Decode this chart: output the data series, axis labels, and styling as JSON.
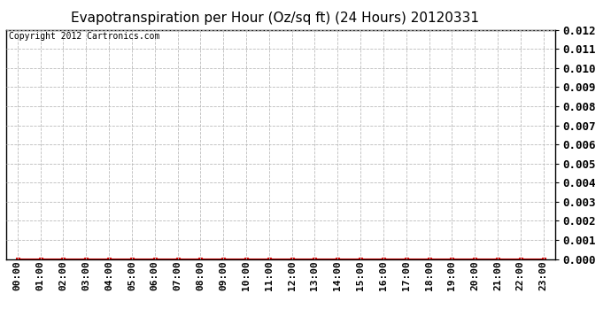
{
  "title": "Evapotranspiration per Hour (Oz/sq ft) (24 Hours) 20120331",
  "copyright_text": "Copyright 2012 Cartronics.com",
  "x_labels": [
    "00:00",
    "01:00",
    "02:00",
    "03:00",
    "04:00",
    "05:00",
    "06:00",
    "07:00",
    "08:00",
    "09:00",
    "10:00",
    "11:00",
    "12:00",
    "13:00",
    "14:00",
    "15:00",
    "16:00",
    "17:00",
    "18:00",
    "19:00",
    "20:00",
    "21:00",
    "22:00",
    "23:00"
  ],
  "y_values": [
    0,
    0,
    0,
    0,
    0,
    0,
    0,
    0,
    0,
    0,
    0,
    0,
    0,
    0,
    0,
    0,
    0,
    0,
    0,
    0,
    0,
    0,
    0,
    0
  ],
  "ylim": [
    0,
    0.012
  ],
  "yticks": [
    0.0,
    0.001,
    0.002,
    0.003,
    0.004,
    0.005,
    0.006,
    0.007,
    0.008,
    0.009,
    0.01,
    0.011,
    0.012
  ],
  "line_color": "#dd0000",
  "marker": "s",
  "marker_color": "#dd0000",
  "marker_size": 3,
  "grid_color": "#bbbbbb",
  "bg_color": "#ffffff",
  "title_fontsize": 11,
  "copyright_fontsize": 7,
  "tick_fontsize": 8,
  "ytick_fontsize": 9
}
